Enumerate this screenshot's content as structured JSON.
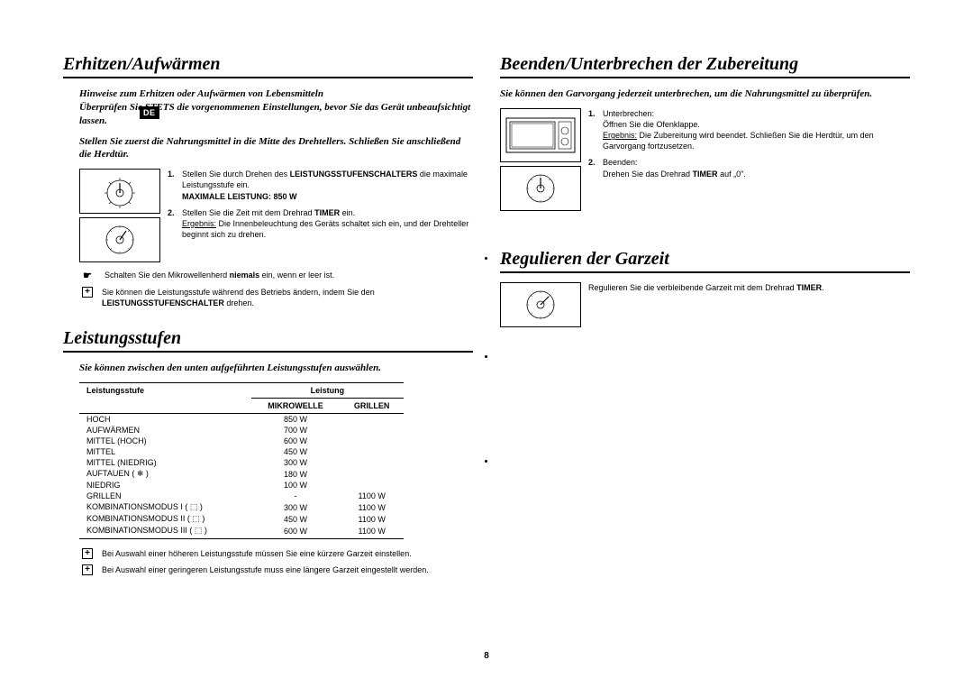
{
  "lang_badge": "DE",
  "page_number": "8",
  "left": {
    "section1": {
      "title": "Erhitzen/Aufwärmen",
      "intro1": "Hinweise zum Erhitzen oder Aufwärmen von Lebensmitteln\nÜberprüfen Sie STETS die vorgenommenen Einstellungen, bevor Sie das Gerät unbeaufsichtigt lassen.",
      "intro2": "Stellen Sie zuerst die Nahrungsmittel in die Mitte des Drehtellers. Schließen Sie anschließend die Herdtür.",
      "step1a": "Stellen Sie durch Drehen des ",
      "step1b": "LEISTUNGSSTUFENSCHALTERS",
      "step1c": " die maximale Leistungsstufe ein.",
      "step1d": "MAXIMALE LEISTUNG: 850 W",
      "step2a": "Stellen Sie die Zeit mit dem Drehrad ",
      "step2b": "TIMER",
      "step2c": " ein.",
      "step2d": "Ergebnis:",
      "step2e": " Die Innenbeleuchtung des Geräts schaltet sich ein, und der Drehteller beginnt sich zu drehen.",
      "note1a": "Schalten Sie den Mikrowellenherd ",
      "note1b": "niemals",
      "note1c": " ein, wenn er leer ist.",
      "note2a": "Sie können die Leistungsstufe während des Betriebs ändern, indem Sie den ",
      "note2b": "LEISTUNGSSTUFENSCHALTER",
      "note2c": " drehen."
    },
    "section2": {
      "title": "Leistungsstufen",
      "intro": "Sie können zwischen den unten aufgeführten Leistungsstufen auswählen.",
      "table": {
        "col1": "Leistungsstufe",
        "col2": "Leistung",
        "sub1": "MIKROWELLE",
        "sub2": "GRILLEN",
        "rows": [
          {
            "name": "HOCH",
            "mw": "850 W",
            "gr": ""
          },
          {
            "name": "AUFWÄRMEN",
            "mw": "700 W",
            "gr": ""
          },
          {
            "name": "MITTEL (HOCH)",
            "mw": "600 W",
            "gr": ""
          },
          {
            "name": "MITTEL",
            "mw": "450 W",
            "gr": ""
          },
          {
            "name": "MITTEL (NIEDRIG)",
            "mw": "300 W",
            "gr": ""
          },
          {
            "name": "AUFTAUEN ( ❄ )",
            "mw": "180 W",
            "gr": ""
          },
          {
            "name": "NIEDRIG",
            "mw": "100 W",
            "gr": ""
          },
          {
            "name": "GRILLEN",
            "mw": "-",
            "gr": "1100 W"
          },
          {
            "name": "KOMBINATIONSMODUS I ( ⬚ )",
            "mw": "300 W",
            "gr": "1100 W"
          },
          {
            "name": "KOMBINATIONSMODUS II ( ⬚ )",
            "mw": "450 W",
            "gr": "1100 W"
          },
          {
            "name": "KOMBINATIONSMODUS III ( ⬚ )",
            "mw": "600 W",
            "gr": "1100 W"
          }
        ]
      },
      "note1": "Bei Auswahl einer höheren Leistungsstufe müssen Sie eine kürzere Garzeit einstellen.",
      "note2": "Bei Auswahl einer geringeren Leistungsstufe muss eine längere Garzeit eingestellt werden."
    }
  },
  "right": {
    "section1": {
      "title": "Beenden/Unterbrechen der Zubereitung",
      "intro": "Sie können den Garvorgang jederzeit unterbrechen, um die Nahrungsmittel zu überprüfen.",
      "step1a": "Unterbrechen:",
      "step1b": "Öffnen Sie die Ofenklappe.",
      "step1c": "Ergebnis:",
      "step1d": " Die Zubereitung wird beendet. Schließen Sie die Herdtür, um den Garvorgang fortzusetzen.",
      "step2a": "Beenden:",
      "step2b": "Drehen Sie das Drehrad ",
      "step2c": "TIMER",
      "step2d": " auf „0\"."
    },
    "section2": {
      "title": "Regulieren der Garzeit",
      "body1": "Regulieren Sie die verbleibende Garzeit mit dem Drehrad ",
      "body2": "TIMER",
      "body3": "."
    }
  }
}
